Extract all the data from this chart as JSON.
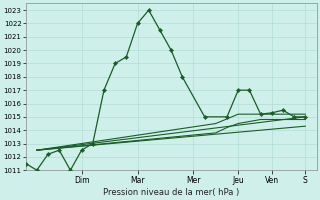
{
  "xlabel": "Pression niveau de la mer( hPa )",
  "bg_color": "#cff0ea",
  "grid_color": "#aad8d0",
  "line_color": "#1a5c28",
  "ylim": [
    1011,
    1023.5
  ],
  "yticks": [
    1011,
    1012,
    1013,
    1014,
    1015,
    1016,
    1017,
    1018,
    1019,
    1020,
    1021,
    1022,
    1023
  ],
  "xlim": [
    0,
    13
  ],
  "day_labels": [
    "Dim",
    "Mar",
    "Mer",
    "Jeu",
    "Ven",
    "S"
  ],
  "day_positions": [
    2.5,
    5.0,
    7.5,
    9.5,
    11.0,
    12.5
  ],
  "series0_x": [
    0.0,
    0.5,
    1.0,
    1.5,
    2.0,
    2.5,
    3.0,
    3.5,
    4.0,
    4.5,
    5.0,
    5.5,
    6.0,
    6.5,
    7.0,
    8.0,
    9.0,
    9.5,
    10.0,
    10.5,
    11.0,
    11.5,
    12.0,
    12.5
  ],
  "series0_y": [
    1011.5,
    1011.0,
    1012.2,
    1012.5,
    1011.0,
    1012.5,
    1013.0,
    1017.0,
    1019.0,
    1019.5,
    1022.0,
    1023.0,
    1021.5,
    1020.0,
    1018.0,
    1015.0,
    1015.0,
    1017.0,
    1017.0,
    1015.2,
    1015.3,
    1015.5,
    1015.0,
    1015.0
  ],
  "series1_x": [
    0.5,
    12.5
  ],
  "series1_y": [
    1012.5,
    1015.0
  ],
  "series2_x": [
    0.5,
    8.5,
    9.5,
    10.5,
    12.5
  ],
  "series2_y": [
    1012.5,
    1014.5,
    1015.2,
    1015.2,
    1015.2
  ],
  "series3_x": [
    0.5,
    8.5,
    9.0,
    9.5,
    10.5,
    12.5
  ],
  "series3_y": [
    1012.5,
    1013.8,
    1014.2,
    1014.5,
    1014.8,
    1014.8
  ],
  "series4_x": [
    0.5,
    12.5
  ],
  "series4_y": [
    1012.5,
    1014.3
  ]
}
